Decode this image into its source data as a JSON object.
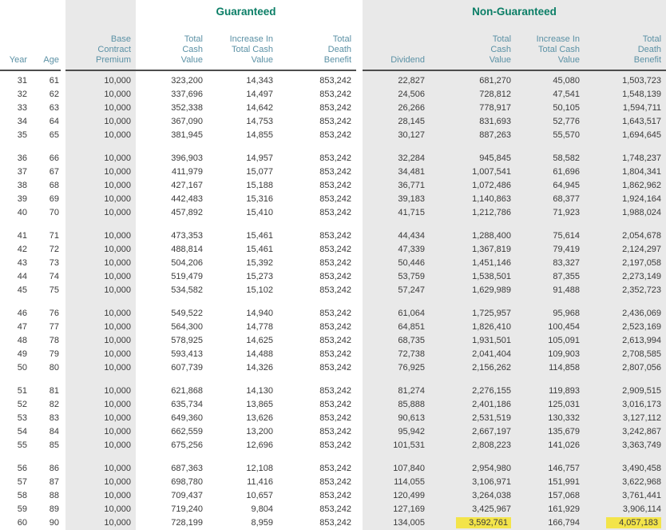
{
  "colors": {
    "section_title": "#0b7e66",
    "column_header": "#5b91a5",
    "body_text": "#3a3a3a",
    "shade_bg": "#e9e9e9",
    "rule": "#4d4d4d",
    "highlight": "#f3e44a"
  },
  "header": {
    "guaranteed": "Guaranteed",
    "non_guaranteed": "Non-Guaranteed",
    "columns": {
      "year": "Year",
      "age": "Age",
      "premium": "Base\nContract\nPremium",
      "g_total_cash_value": "Total\nCash\nValue",
      "g_increase": "Increase In\nTotal Cash\nValue",
      "g_death_benefit": "Total\nDeath\nBenefit",
      "dividend": "Dividend",
      "ng_total_cash_value": "Total\nCash\nValue",
      "ng_increase": "Increase In\nTotal Cash\nValue",
      "ng_death_benefit": "Total\nDeath\nBenefit"
    }
  },
  "group_size": 5,
  "highlighted_cells": [
    {
      "row_index": 29,
      "col_indices": [
        7,
        9
      ]
    }
  ],
  "rows": [
    [
      "31",
      "61",
      "10,000",
      "323,200",
      "14,343",
      "853,242",
      "22,827",
      "681,270",
      "45,080",
      "1,503,723"
    ],
    [
      "32",
      "62",
      "10,000",
      "337,696",
      "14,497",
      "853,242",
      "24,506",
      "728,812",
      "47,541",
      "1,548,139"
    ],
    [
      "33",
      "63",
      "10,000",
      "352,338",
      "14,642",
      "853,242",
      "26,266",
      "778,917",
      "50,105",
      "1,594,711"
    ],
    [
      "34",
      "64",
      "10,000",
      "367,090",
      "14,753",
      "853,242",
      "28,145",
      "831,693",
      "52,776",
      "1,643,517"
    ],
    [
      "35",
      "65",
      "10,000",
      "381,945",
      "14,855",
      "853,242",
      "30,127",
      "887,263",
      "55,570",
      "1,694,645"
    ],
    [
      "36",
      "66",
      "10,000",
      "396,903",
      "14,957",
      "853,242",
      "32,284",
      "945,845",
      "58,582",
      "1,748,237"
    ],
    [
      "37",
      "67",
      "10,000",
      "411,979",
      "15,077",
      "853,242",
      "34,481",
      "1,007,541",
      "61,696",
      "1,804,341"
    ],
    [
      "38",
      "68",
      "10,000",
      "427,167",
      "15,188",
      "853,242",
      "36,771",
      "1,072,486",
      "64,945",
      "1,862,962"
    ],
    [
      "39",
      "69",
      "10,000",
      "442,483",
      "15,316",
      "853,242",
      "39,183",
      "1,140,863",
      "68,377",
      "1,924,164"
    ],
    [
      "40",
      "70",
      "10,000",
      "457,892",
      "15,410",
      "853,242",
      "41,715",
      "1,212,786",
      "71,923",
      "1,988,024"
    ],
    [
      "41",
      "71",
      "10,000",
      "473,353",
      "15,461",
      "853,242",
      "44,434",
      "1,288,400",
      "75,614",
      "2,054,678"
    ],
    [
      "42",
      "72",
      "10,000",
      "488,814",
      "15,461",
      "853,242",
      "47,339",
      "1,367,819",
      "79,419",
      "2,124,297"
    ],
    [
      "43",
      "73",
      "10,000",
      "504,206",
      "15,392",
      "853,242",
      "50,446",
      "1,451,146",
      "83,327",
      "2,197,058"
    ],
    [
      "44",
      "74",
      "10,000",
      "519,479",
      "15,273",
      "853,242",
      "53,759",
      "1,538,501",
      "87,355",
      "2,273,149"
    ],
    [
      "45",
      "75",
      "10,000",
      "534,582",
      "15,102",
      "853,242",
      "57,247",
      "1,629,989",
      "91,488",
      "2,352,723"
    ],
    [
      "46",
      "76",
      "10,000",
      "549,522",
      "14,940",
      "853,242",
      "61,064",
      "1,725,957",
      "95,968",
      "2,436,069"
    ],
    [
      "47",
      "77",
      "10,000",
      "564,300",
      "14,778",
      "853,242",
      "64,851",
      "1,826,410",
      "100,454",
      "2,523,169"
    ],
    [
      "48",
      "78",
      "10,000",
      "578,925",
      "14,625",
      "853,242",
      "68,735",
      "1,931,501",
      "105,091",
      "2,613,994"
    ],
    [
      "49",
      "79",
      "10,000",
      "593,413",
      "14,488",
      "853,242",
      "72,738",
      "2,041,404",
      "109,903",
      "2,708,585"
    ],
    [
      "50",
      "80",
      "10,000",
      "607,739",
      "14,326",
      "853,242",
      "76,925",
      "2,156,262",
      "114,858",
      "2,807,056"
    ],
    [
      "51",
      "81",
      "10,000",
      "621,868",
      "14,130",
      "853,242",
      "81,274",
      "2,276,155",
      "119,893",
      "2,909,515"
    ],
    [
      "52",
      "82",
      "10,000",
      "635,734",
      "13,865",
      "853,242",
      "85,888",
      "2,401,186",
      "125,031",
      "3,016,173"
    ],
    [
      "53",
      "83",
      "10,000",
      "649,360",
      "13,626",
      "853,242",
      "90,613",
      "2,531,519",
      "130,332",
      "3,127,112"
    ],
    [
      "54",
      "84",
      "10,000",
      "662,559",
      "13,200",
      "853,242",
      "95,942",
      "2,667,197",
      "135,679",
      "3,242,867"
    ],
    [
      "55",
      "85",
      "10,000",
      "675,256",
      "12,696",
      "853,242",
      "101,531",
      "2,808,223",
      "141,026",
      "3,363,749"
    ],
    [
      "56",
      "86",
      "10,000",
      "687,363",
      "12,108",
      "853,242",
      "107,840",
      "2,954,980",
      "146,757",
      "3,490,458"
    ],
    [
      "57",
      "87",
      "10,000",
      "698,780",
      "11,416",
      "853,242",
      "114,055",
      "3,106,971",
      "151,991",
      "3,622,968"
    ],
    [
      "58",
      "88",
      "10,000",
      "709,437",
      "10,657",
      "853,242",
      "120,499",
      "3,264,038",
      "157,068",
      "3,761,441"
    ],
    [
      "59",
      "89",
      "10,000",
      "719,240",
      "9,804",
      "853,242",
      "127,169",
      "3,425,967",
      "161,929",
      "3,906,114"
    ],
    [
      "60",
      "90",
      "10,000",
      "728,199",
      "8,959",
      "853,242",
      "134,005",
      "3,592,761",
      "166,794",
      "4,057,183"
    ]
  ]
}
